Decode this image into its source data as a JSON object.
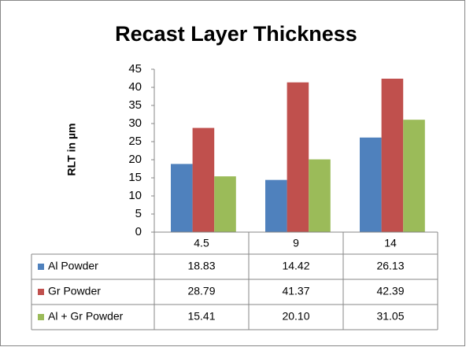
{
  "chart_data": {
    "type": "bar",
    "title": "Recast Layer Thickness",
    "y_label": "RLT in µm",
    "categories": [
      "4.5",
      "9",
      "14"
    ],
    "series": [
      {
        "name": "Al Powder",
        "color": "#4f81bd",
        "values": [
          18.83,
          14.42,
          26.13
        ],
        "value_labels": [
          "18.83",
          "14.42",
          "26.13"
        ]
      },
      {
        "name": "Gr Powder",
        "color": "#c0504d",
        "values": [
          28.79,
          41.37,
          42.39
        ],
        "value_labels": [
          "28.79",
          "41.37",
          "42.39"
        ]
      },
      {
        "name": "Al + Gr Powder",
        "color": "#9bbb59",
        "values": [
          15.41,
          20.1,
          31.05
        ],
        "value_labels": [
          "15.41",
          "20.10",
          "31.05"
        ]
      }
    ],
    "ylim": [
      0,
      45
    ],
    "yticks": [
      0,
      5,
      10,
      15,
      20,
      25,
      30,
      35,
      40,
      45
    ],
    "grid": false,
    "data_table": true
  }
}
